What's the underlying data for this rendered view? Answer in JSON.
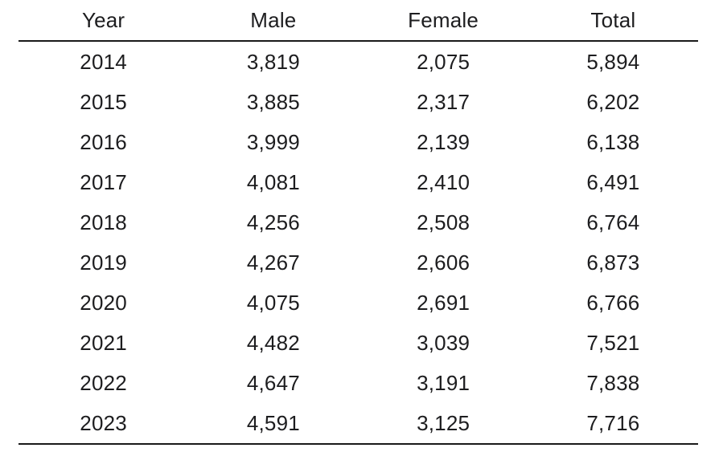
{
  "page": {
    "background_color": "#ffffff",
    "text_color": "#1d1d1f",
    "rule_color": "#1a1a1a"
  },
  "table": {
    "columns": [
      "Year",
      "Male",
      "Female",
      "Total"
    ],
    "rows": [
      [
        "2014",
        "3,819",
        "2,075",
        "5,894"
      ],
      [
        "2015",
        "3,885",
        "2,317",
        "6,202"
      ],
      [
        "2016",
        "3,999",
        "2,139",
        "6,138"
      ],
      [
        "2017",
        "4,081",
        "2,410",
        "6,491"
      ],
      [
        "2018",
        "4,256",
        "2,508",
        "6,764"
      ],
      [
        "2019",
        "4,267",
        "2,606",
        "6,873"
      ],
      [
        "2020",
        "4,075",
        "2,691",
        "6,766"
      ],
      [
        "2021",
        "4,482",
        "3,039",
        "7,521"
      ],
      [
        "2022",
        "4,647",
        "3,191",
        "7,838"
      ],
      [
        "2023",
        "4,591",
        "3,125",
        "7,716"
      ]
    ]
  },
  "chart_data": {
    "type": "table",
    "title": "",
    "columns": [
      "Year",
      "Male",
      "Female",
      "Total"
    ],
    "rows": [
      [
        2014,
        3819,
        2075,
        5894
      ],
      [
        2015,
        3885,
        2317,
        6202
      ],
      [
        2016,
        3999,
        2139,
        6138
      ],
      [
        2017,
        4081,
        2410,
        6491
      ],
      [
        2018,
        4256,
        2508,
        6764
      ],
      [
        2019,
        4267,
        2606,
        6873
      ],
      [
        2020,
        4075,
        2691,
        6766
      ],
      [
        2021,
        4482,
        3039,
        7521
      ],
      [
        2022,
        4647,
        3191,
        7838
      ],
      [
        2023,
        4591,
        3125,
        7716
      ]
    ]
  }
}
